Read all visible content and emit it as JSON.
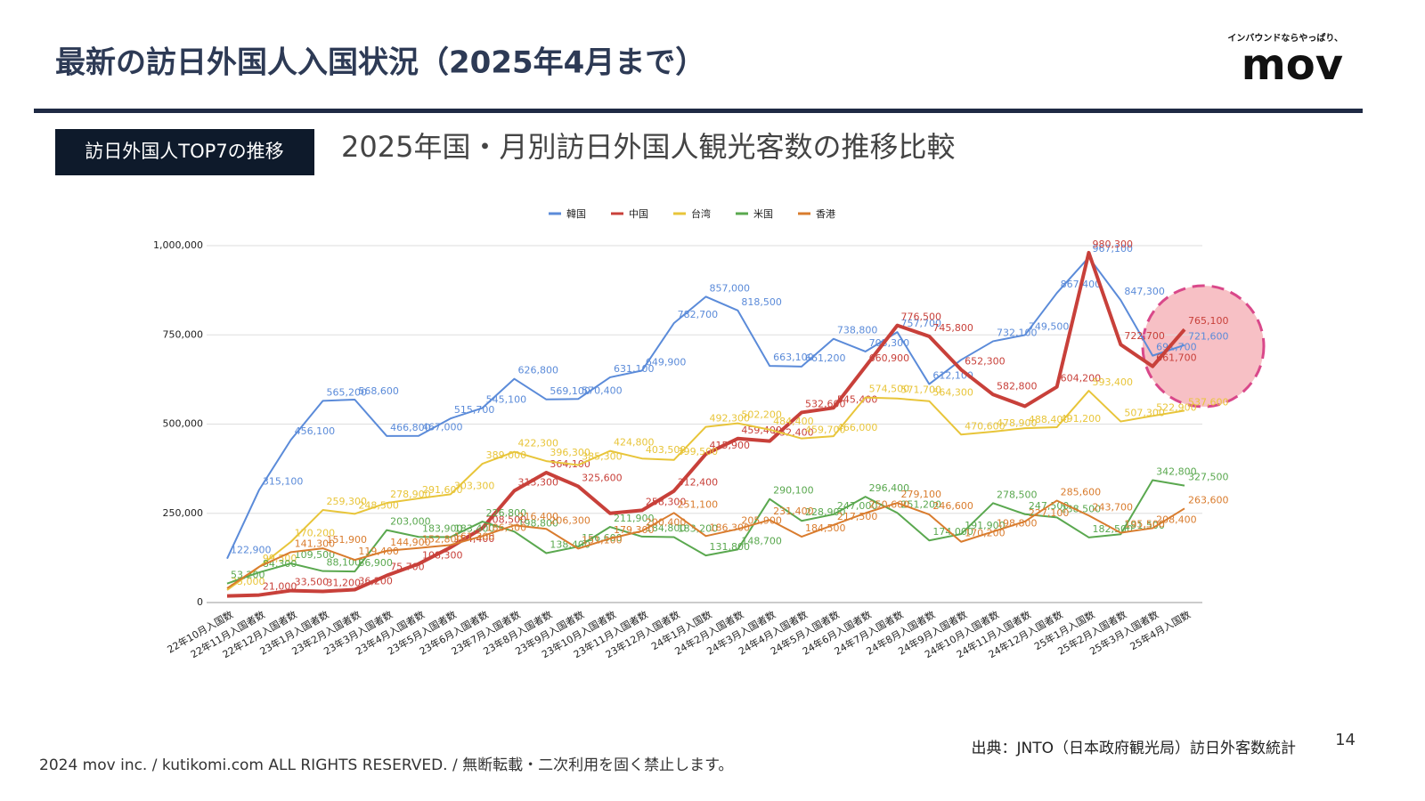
{
  "header": {
    "title": "最新の訪日外国人入国状況（2025年4月まで）",
    "logo_tagline": "インバウンドならやっぱり、",
    "logo": "mov"
  },
  "badge": "訪日外国人TOP7の推移",
  "chart_data": {
    "type": "line",
    "title": "2025年国・月別訪日外国人観光客数の推移比較",
    "categories": [
      "22年10月入国数",
      "22年11月入国者数",
      "22年12月入国者数",
      "23年1月入国者数",
      "23年2月入国者数",
      "23年3月入国者数",
      "23年4月入国者数",
      "23年5月入国者数",
      "23年6月入国者数",
      "23年7月入国者数",
      "23年8月入国者数",
      "23年9月入国者数",
      "23年10月入国者数",
      "23年11月入国者数",
      "23年12月入国者数",
      "24年1月入国数",
      "24年2月入国者数",
      "24年3月入国者数",
      "24年4月入国者数",
      "24年5月入国者数",
      "24年6月入国者数",
      "24年7月入国者数",
      "24年8月入国者数",
      "24年9月入国者数",
      "24年10月入国者数",
      "24年11月入国者数",
      "24年12月入国者数",
      "25年1月入国数",
      "25年2月入国者数",
      "25年3月入国者数",
      "25年4月入国数"
    ],
    "series": [
      {
        "name": "韓国",
        "color": "#5b8bd9",
        "values": [
          122900,
          315100,
          456100,
          565200,
          568600,
          466800,
          467000,
          515700,
          545100,
          626800,
          569100,
          570400,
          631100,
          649900,
          782700,
          857000,
          818500,
          663100,
          661200,
          738800,
          703300,
          757700,
          612100,
          680000,
          732100,
          749500,
          867400,
          967100,
          847300,
          691700,
          721600
        ],
        "value_labels": [
          "122,900",
          "315,100",
          "456,100",
          "565,200",
          "568,600",
          "466,800",
          "467,000",
          "515,700",
          "545,100",
          "626,800",
          "569,100",
          "570,400",
          "631,100",
          "649,900",
          "782,700",
          "857,000",
          "818,500",
          "663,100",
          "661,200",
          "738,800",
          "703,300",
          "757,700",
          "612,100",
          null,
          "732,100",
          "749,500",
          "867,400",
          "967,100",
          "847,300",
          "691,700",
          "721,600"
        ]
      },
      {
        "name": "中国",
        "color": "#c8403a",
        "values": [
          18300,
          21000,
          33500,
          31200,
          36200,
          75700,
          108300,
          154400,
          208500,
          313300,
          364100,
          325600,
          250000,
          258300,
          312400,
          415900,
          459400,
          452400,
          532600,
          545400,
          660900,
          776500,
          745800,
          652300,
          582800,
          550000,
          604200,
          980300,
          722700,
          661700,
          765100
        ],
        "value_labels": [
          null,
          "21,000",
          "33,500",
          "31,200",
          "36,200",
          "75,700",
          "108,300",
          "154,400",
          "208,500",
          "313,300",
          "364,100",
          "325,600",
          null,
          "258,300",
          "312,400",
          "415,900",
          "459,400",
          "452,400",
          "532,600",
          "545,400",
          "660,900",
          "776,500",
          "745,800",
          "652,300",
          "582,800",
          null,
          "604,200",
          "980,300",
          "722,700",
          "661,700",
          "765,100"
        ]
      },
      {
        "name": "台湾",
        "color": "#e8c53a",
        "values": [
          35000,
          99500,
          170200,
          259300,
          248500,
          278900,
          291600,
          303300,
          389000,
          422300,
          396300,
          385300,
          424800,
          403500,
          399500,
          492300,
          502200,
          484400,
          459700,
          466000,
          574500,
          571700,
          564300,
          470600,
          478900,
          488400,
          491200,
          593400,
          507300,
          522900,
          537600
        ],
        "value_labels": [
          "35,000",
          "99,500",
          "170,200",
          "259,300",
          "248,500",
          "278,900",
          "291,600",
          "303,300",
          "389,000",
          "422,300",
          "396,300",
          "385,300",
          "424,800",
          "403,500",
          "399,500",
          "492,300",
          "502,200",
          "484,400",
          "459,700",
          "466,000",
          "574,500",
          "571,700",
          "564,300",
          "470,600",
          "478,900",
          "488,400",
          "491,200",
          "593,400",
          "507,300",
          "522,900",
          "537,600"
        ]
      },
      {
        "name": "米国",
        "color": "#5aa84f",
        "values": [
          53200,
          84300,
          109500,
          88100,
          86900,
          203000,
          183900,
          183400,
          226800,
          198800,
          138400,
          156600,
          211900,
          184800,
          183200,
          131800,
          148700,
          290100,
          228900,
          247000,
          296400,
          251200,
          174000,
          191900,
          278500,
          247500,
          238500,
          182500,
          191500,
          342800,
          327500
        ],
        "value_labels": [
          "53,200",
          "84,300",
          "109,500",
          "88,100",
          "86,900",
          "203,000",
          "183,900",
          "183,400",
          "226,800",
          "198,800",
          "138,400",
          "156,600",
          "211,900",
          "184,800",
          "183,200",
          "131,800",
          "148,700",
          "290,100",
          "228,900",
          "247,000",
          "296,400",
          "251,200",
          "174,000",
          "191,900",
          "278,500",
          "247,500",
          "238,500",
          "182,500",
          "191,500",
          "342,800",
          "327,500"
        ]
      },
      {
        "name": "香港",
        "color": "#d97c2e",
        "values": [
          40000,
          100000,
          141300,
          151900,
          119400,
          144900,
          152800,
          161300,
          186300,
          216400,
          206300,
          151100,
          179300,
          200400,
          251100,
          186300,
          205900,
          231400,
          184500,
          217500,
          250600,
          279100,
          246600,
          170200,
          198800,
          227100,
          285600,
          243700,
          195500,
          208400,
          263600
        ],
        "value_labels": [
          null,
          null,
          "141,300",
          "151,900",
          "119,400",
          "144,900",
          "152,800",
          "161,300",
          "186,300",
          "216,400",
          "206,300",
          "151,100",
          "179,300",
          "200,400",
          "251,100",
          "186,300",
          "205,900",
          "231,400",
          "184,500",
          "217,500",
          "250,600",
          "279,100",
          "246,600",
          "170,200",
          "198,800",
          "227,100",
          "285,600",
          "243,700",
          "195,500",
          "208,400",
          "263,600"
        ]
      }
    ],
    "ylim": [
      0,
      1000000
    ],
    "yticks": [
      0,
      {
        "value": 250000,
        "label": "250,000"
      },
      {
        "value": 500000,
        "label": "500,000"
      },
      {
        "value": 750000,
        "label": "750,000"
      },
      {
        "value": 1000000,
        "label": "1,000,000"
      }
    ],
    "grid": true,
    "legend": "top"
  },
  "source": "出典：JNTO（日本政府観光局）訪日外客数統計",
  "page_number": "14",
  "footer": "2024 mov inc. / kutikomi.com ALL RIGHTS RESERVED. / 無断転載・二次利用を固く禁止します。"
}
